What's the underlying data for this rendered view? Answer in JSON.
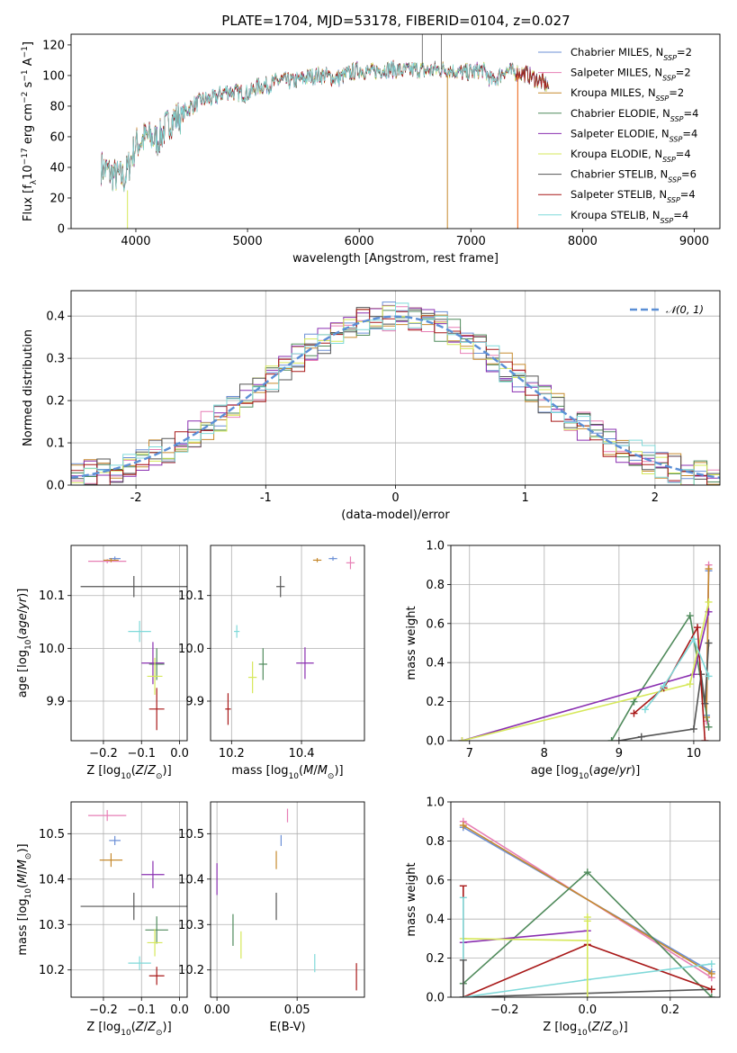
{
  "figure": {
    "title": "PLATE=1704, MJD=53178, FIBERID=0104, z=0.027",
    "colors": {
      "chabrier_miles": "#6b8fd6",
      "salpeter_miles": "#e77fb5",
      "kroupa_miles": "#c68a2e",
      "chabrier_elodie": "#4f8a5b",
      "salpeter_elodie": "#8a2fb0",
      "kroupa_elodie": "#d6e85a",
      "chabrier_stelib": "#555555",
      "salpeter_stelib": "#a81818",
      "kroupa_stelib": "#7fd9d9",
      "normal_curve": "#5b8fd6",
      "spec_orange": "#ee7733"
    }
  },
  "chart_data": [
    {
      "type": "line",
      "title": "PLATE=1704, MJD=53178, FIBERID=0104, z=0.027",
      "xlabel": "wavelength [Angstrom, rest frame]",
      "ylabel_html": "Flux [f<tspan baseline-shift=\"sub\" font-size=\"9\">λ</tspan>10<tspan baseline-shift=\"super\" font-size=\"9\">−17</tspan> erg cm<tspan baseline-shift=\"super\" font-size=\"9\">−2</tspan> s<tspan baseline-shift=\"super\" font-size=\"9\">−1</tspan> A<tspan baseline-shift=\"super\" font-size=\"9\">−1</tspan>]",
      "xlim": [
        3420,
        9230
      ],
      "ylim": [
        0,
        127
      ],
      "xticks": [
        4000,
        5000,
        6000,
        7000,
        8000,
        9000
      ],
      "yticks": [
        0,
        20,
        40,
        60,
        80,
        100,
        120
      ],
      "spectrum_x": [
        3700,
        3800,
        3900,
        4000,
        4100,
        4200,
        4300,
        4400,
        4500,
        4600,
        4700,
        4800,
        4900,
        5000,
        5100,
        5200,
        5300,
        5400,
        5500,
        5600,
        5700,
        5800,
        5900,
        6000,
        6100,
        6200,
        6300,
        6400,
        6500,
        6600,
        6700,
        6800,
        6900,
        7000,
        7100,
        7200,
        7300,
        7400,
        7500,
        7600,
        7700
      ],
      "spectrum_y": [
        40,
        35,
        33,
        55,
        60,
        58,
        70,
        74,
        80,
        84,
        85,
        90,
        89,
        88,
        93,
        94,
        97,
        96,
        98,
        100,
        100,
        98,
        101,
        104,
        102,
        104,
        104,
        103,
        104,
        103,
        104,
        104,
        102,
        102,
        104,
        96,
        103,
        102,
        101,
        97,
        93
      ],
      "legend": [
        {
          "label": "Chabrier MILES, N<tspan baseline-shift=\"sub\" font-size=\"8\" font-style=\"italic\">SSP</tspan>=2",
          "color": "chabrier_miles"
        },
        {
          "label": "Salpeter MILES, N<tspan baseline-shift=\"sub\" font-size=\"8\" font-style=\"italic\">SSP</tspan>=2",
          "color": "salpeter_miles"
        },
        {
          "label": "Kroupa MILES, N<tspan baseline-shift=\"sub\" font-size=\"8\" font-style=\"italic\">SSP</tspan>=2",
          "color": "kroupa_miles"
        },
        {
          "label": "Chabrier ELODIE, N<tspan baseline-shift=\"sub\" font-size=\"8\" font-style=\"italic\">SSP</tspan>=4",
          "color": "chabrier_elodie"
        },
        {
          "label": "Salpeter ELODIE, N<tspan baseline-shift=\"sub\" font-size=\"8\" font-style=\"italic\">SSP</tspan>=4",
          "color": "salpeter_elodie"
        },
        {
          "label": "Kroupa ELODIE, N<tspan baseline-shift=\"sub\" font-size=\"8\" font-style=\"italic\">SSP</tspan>=4",
          "color": "kroupa_elodie"
        },
        {
          "label": "Chabrier STELIB, N<tspan baseline-shift=\"sub\" font-size=\"8\" font-style=\"italic\">SSP</tspan>=6",
          "color": "chabrier_stelib"
        },
        {
          "label": "Salpeter STELIB, N<tspan baseline-shift=\"sub\" font-size=\"8\" font-style=\"italic\">SSP</tspan>=4",
          "color": "salpeter_stelib"
        },
        {
          "label": "Kroupa STELIB, N<tspan baseline-shift=\"sub\" font-size=\"8\" font-style=\"italic\">SSP</tspan>=4",
          "color": "kroupa_stelib"
        }
      ]
    },
    {
      "type": "histogram",
      "xlabel": "(data-model)/error",
      "ylabel": "Normed distribution",
      "xlim": [
        -2.5,
        2.5
      ],
      "ylim": [
        0,
        0.46
      ],
      "xticks": [
        -2,
        -1,
        0,
        1,
        2
      ],
      "yticks": [
        0.0,
        0.1,
        0.2,
        0.3,
        0.4
      ],
      "bin_width": 0.1,
      "curve_label": "𝒩(0, 1)",
      "curve": {
        "mean": 0,
        "sigma": 1
      }
    },
    {
      "type": "scatter",
      "subtype": "errorbar",
      "xlabel_html": "Z [log<tspan baseline-shift=\"sub\" font-size=\"9\">10</tspan>(<tspan font-style=\"italic\">Z</tspan>/<tspan font-style=\"italic\">Z</tspan><tspan baseline-shift=\"sub\" font-size=\"9\">⊙</tspan>)]",
      "ylabel_html": "age  [log<tspan baseline-shift=\"sub\" font-size=\"9\">10</tspan>(<tspan font-style=\"italic\">age</tspan>/<tspan font-style=\"italic\">yr</tspan>)]",
      "xlim": [
        -0.285,
        0.02
      ],
      "ylim": [
        9.825,
        10.195
      ],
      "xticks": [
        -0.2,
        -0.1,
        0.0
      ],
      "xticklabels": [
        "−0.2",
        "−0.1",
        "0.0"
      ],
      "yticks": [
        9.9,
        10.0,
        10.1
      ],
      "points": [
        {
          "c": "chabrier_miles",
          "x": -0.17,
          "xe": 0.015,
          "y": 10.17,
          "ye": 0.004
        },
        {
          "c": "salpeter_miles",
          "x": -0.19,
          "xe": 0.05,
          "y": 10.165,
          "ye": 0.004
        },
        {
          "c": "kroupa_miles",
          "x": -0.18,
          "xe": 0.02,
          "y": 10.167,
          "ye": 0.004
        },
        {
          "c": "chabrier_elodie",
          "x": -0.06,
          "xe": 0.02,
          "y": 9.97,
          "ye": 0.03
        },
        {
          "c": "salpeter_elodie",
          "x": -0.07,
          "xe": 0.03,
          "y": 9.972,
          "ye": 0.04
        },
        {
          "c": "kroupa_elodie",
          "x": -0.065,
          "xe": 0.02,
          "y": 9.947,
          "ye": 0.035
        },
        {
          "c": "chabrier_stelib",
          "x": -0.12,
          "xe": 0.14,
          "y": 10.117,
          "ye": 0.02
        },
        {
          "c": "salpeter_stelib",
          "x": -0.06,
          "xe": 0.02,
          "y": 9.885,
          "ye": 0.04
        },
        {
          "c": "kroupa_stelib",
          "x": -0.105,
          "xe": 0.03,
          "y": 10.032,
          "ye": 0.02
        }
      ]
    },
    {
      "type": "scatter",
      "subtype": "errorbar",
      "xlabel_html": "mass [log<tspan baseline-shift=\"sub\" font-size=\"9\">10</tspan>(<tspan font-style=\"italic\">M</tspan>/<tspan font-style=\"italic\">M</tspan><tspan baseline-shift=\"sub\" font-size=\"9\">⊙</tspan>)]",
      "xlim": [
        10.14,
        10.58
      ],
      "ylim": [
        9.825,
        10.195
      ],
      "xticks": [
        10.2,
        10.4
      ],
      "xticklabels": [
        "10.2",
        "10.4"
      ],
      "yticks": [
        9.9,
        10.0,
        10.1
      ],
      "points": [
        {
          "c": "chabrier_miles",
          "x": 10.49,
          "xe": 0.012,
          "y": 10.17,
          "ye": 0.004
        },
        {
          "c": "salpeter_miles",
          "x": 10.54,
          "xe": 0.012,
          "y": 10.162,
          "ye": 0.012
        },
        {
          "c": "kroupa_miles",
          "x": 10.445,
          "xe": 0.012,
          "y": 10.167,
          "ye": 0.004
        },
        {
          "c": "chabrier_elodie",
          "x": 10.29,
          "xe": 0.012,
          "y": 9.97,
          "ye": 0.03
        },
        {
          "c": "salpeter_elodie",
          "x": 10.41,
          "xe": 0.025,
          "y": 9.972,
          "ye": 0.03
        },
        {
          "c": "kroupa_elodie",
          "x": 10.26,
          "xe": 0.012,
          "y": 9.945,
          "ye": 0.03
        },
        {
          "c": "chabrier_stelib",
          "x": 10.34,
          "xe": 0.012,
          "y": 10.117,
          "ye": 0.02
        },
        {
          "c": "salpeter_stelib",
          "x": 10.19,
          "xe": 0.008,
          "y": 9.885,
          "ye": 0.03
        },
        {
          "c": "kroupa_stelib",
          "x": 10.215,
          "xe": 0.008,
          "y": 10.032,
          "ye": 0.012
        }
      ]
    },
    {
      "type": "line",
      "xlabel_html": "age  [log<tspan baseline-shift=\"sub\" font-size=\"9\">10</tspan>(<tspan font-style=\"italic\">age</tspan>/<tspan font-style=\"italic\">yr</tspan>)]",
      "ylabel": "mass weight",
      "xlim": [
        6.75,
        10.35
      ],
      "ylim": [
        0,
        1.0
      ],
      "xticks": [
        7,
        8,
        9,
        10
      ],
      "xticklabels": [
        "7",
        "8",
        "9",
        "10"
      ],
      "yticks": [
        0.0,
        0.2,
        0.4,
        0.6,
        0.8,
        1.0
      ],
      "yticklabels": [
        "0.0",
        "0.2",
        "0.4",
        "0.6",
        "0.8",
        "1.0"
      ],
      "series": [
        {
          "c": "chabrier_miles",
          "pts": [
            [
              10.17,
              0.13
            ],
            [
              10.2,
              0.87
            ]
          ]
        },
        {
          "c": "salpeter_miles",
          "pts": [
            [
              10.17,
              0.1
            ],
            [
              10.2,
              0.9
            ]
          ]
        },
        {
          "c": "kroupa_miles",
          "pts": [
            [
              10.17,
              0.12
            ],
            [
              10.2,
              0.88
            ]
          ]
        },
        {
          "c": "chabrier_elodie",
          "pts": [
            [
              8.9,
              0.0
            ],
            [
              9.2,
              0.2
            ],
            [
              9.95,
              0.64
            ],
            [
              10.2,
              0.07
            ]
          ]
        },
        {
          "c": "salpeter_elodie",
          "pts": [
            [
              6.9,
              0.0
            ],
            [
              10.0,
              0.34
            ],
            [
              10.2,
              0.66
            ]
          ]
        },
        {
          "c": "kroupa_elodie",
          "pts": [
            [
              6.9,
              0.0
            ],
            [
              9.95,
              0.29
            ],
            [
              10.2,
              0.71
            ]
          ]
        },
        {
          "c": "chabrier_stelib",
          "pts": [
            [
              9.0,
              0.0
            ],
            [
              9.3,
              0.02
            ],
            [
              10.0,
              0.06
            ],
            [
              10.1,
              0.34
            ],
            [
              10.15,
              0.19
            ],
            [
              10.2,
              0.5
            ]
          ]
        },
        {
          "c": "salpeter_stelib",
          "pts": [
            [
              9.2,
              0.14
            ],
            [
              9.6,
              0.27
            ],
            [
              10.05,
              0.58
            ],
            [
              10.15,
              0.0
            ]
          ]
        },
        {
          "c": "kroupa_stelib",
          "pts": [
            [
              9.35,
              0.16
            ],
            [
              9.6,
              0.28
            ],
            [
              10.0,
              0.52
            ],
            [
              10.2,
              0.33
            ]
          ]
        }
      ]
    },
    {
      "type": "scatter",
      "subtype": "errorbar",
      "xlabel_html": "Z [log<tspan baseline-shift=\"sub\" font-size=\"9\">10</tspan>(<tspan font-style=\"italic\">Z</tspan>/<tspan font-style=\"italic\">Z</tspan><tspan baseline-shift=\"sub\" font-size=\"9\">⊙</tspan>)]",
      "ylabel_html": "mass [log<tspan baseline-shift=\"sub\" font-size=\"9\">10</tspan>(<tspan font-style=\"italic\">M</tspan>/<tspan font-style=\"italic\">M</tspan><tspan baseline-shift=\"sub\" font-size=\"9\">⊙</tspan>)]",
      "xlim": [
        -0.285,
        0.02
      ],
      "ylim": [
        10.14,
        10.57
      ],
      "xticks": [
        -0.2,
        -0.1,
        0.0
      ],
      "xticklabels": [
        "−0.2",
        "−0.1",
        "0.0"
      ],
      "yticks": [
        10.2,
        10.3,
        10.4,
        10.5
      ],
      "points": [
        {
          "c": "chabrier_miles",
          "x": -0.17,
          "xe": 0.015,
          "y": 10.485,
          "ye": 0.01
        },
        {
          "c": "salpeter_miles",
          "x": -0.19,
          "xe": 0.05,
          "y": 10.54,
          "ye": 0.012
        },
        {
          "c": "kroupa_miles",
          "x": -0.18,
          "xe": 0.03,
          "y": 10.442,
          "ye": 0.015
        },
        {
          "c": "chabrier_elodie",
          "x": -0.06,
          "xe": 0.03,
          "y": 10.288,
          "ye": 0.03
        },
        {
          "c": "salpeter_elodie",
          "x": -0.07,
          "xe": 0.03,
          "y": 10.41,
          "ye": 0.03
        },
        {
          "c": "kroupa_elodie",
          "x": -0.065,
          "xe": 0.02,
          "y": 10.26,
          "ye": 0.03
        },
        {
          "c": "chabrier_stelib",
          "x": -0.12,
          "xe": 0.14,
          "y": 10.34,
          "ye": 0.03
        },
        {
          "c": "salpeter_stelib",
          "x": -0.06,
          "xe": 0.02,
          "y": 10.187,
          "ye": 0.02
        },
        {
          "c": "kroupa_stelib",
          "x": -0.105,
          "xe": 0.03,
          "y": 10.215,
          "ye": 0.015
        }
      ]
    },
    {
      "type": "scatter",
      "subtype": "errorbar",
      "xlabel": "E(B-V)",
      "xlim": [
        -0.004,
        0.092
      ],
      "ylim": [
        10.14,
        10.57
      ],
      "xticks": [
        0.0,
        0.05
      ],
      "xticklabels": [
        "0.00",
        "0.05"
      ],
      "yticks": [
        10.2,
        10.3,
        10.4,
        10.5
      ],
      "points": [
        {
          "c": "chabrier_miles",
          "x": 0.04,
          "xe": 0,
          "y": 10.485,
          "ye": 0.012
        },
        {
          "c": "salpeter_miles",
          "x": 0.044,
          "xe": 0,
          "y": 10.54,
          "ye": 0.015
        },
        {
          "c": "kroupa_miles",
          "x": 0.037,
          "xe": 0,
          "y": 10.442,
          "ye": 0.02
        },
        {
          "c": "chabrier_elodie",
          "x": 0.01,
          "xe": 0,
          "y": 10.288,
          "ye": 0.035
        },
        {
          "c": "salpeter_elodie",
          "x": 0.0,
          "xe": 0,
          "y": 10.4,
          "ye": 0.035
        },
        {
          "c": "kroupa_elodie",
          "x": 0.015,
          "xe": 0,
          "y": 10.255,
          "ye": 0.03
        },
        {
          "c": "chabrier_stelib",
          "x": 0.037,
          "xe": 0,
          "y": 10.34,
          "ye": 0.03
        },
        {
          "c": "salpeter_stelib",
          "x": 0.087,
          "xe": 0,
          "y": 10.185,
          "ye": 0.03
        },
        {
          "c": "kroupa_stelib",
          "x": 0.061,
          "xe": 0,
          "y": 10.215,
          "ye": 0.02
        }
      ]
    },
    {
      "type": "line",
      "xlabel_html": "Z [log<tspan baseline-shift=\"sub\" font-size=\"9\">10</tspan>(<tspan font-style=\"italic\">Z</tspan>/<tspan font-style=\"italic\">Z</tspan><tspan baseline-shift=\"sub\" font-size=\"9\">⊙</tspan>)]",
      "ylabel": "mass weight",
      "xlim": [
        -0.33,
        0.32
      ],
      "ylim": [
        0,
        1.0
      ],
      "xticks": [
        -0.2,
        0.0,
        0.2
      ],
      "xticklabels": [
        "−0.2",
        "0.0",
        "0.2"
      ],
      "yticks": [
        0.0,
        0.2,
        0.4,
        0.6,
        0.8,
        1.0
      ],
      "yticklabels": [
        "0.0",
        "0.2",
        "0.4",
        "0.6",
        "0.8",
        "1.0"
      ],
      "series": [
        {
          "c": "chabrier_miles",
          "pts": [
            [
              -0.3,
              0.87
            ],
            [
              0.3,
              0.13
            ]
          ]
        },
        {
          "c": "salpeter_miles",
          "pts": [
            [
              -0.3,
              0.9
            ],
            [
              0.3,
              0.1
            ]
          ]
        },
        {
          "c": "kroupa_miles",
          "pts": [
            [
              -0.3,
              0.88
            ],
            [
              0.3,
              0.12
            ]
          ]
        },
        {
          "c": "chabrier_elodie",
          "pts": [
            [
              -0.3,
              0.07
            ],
            [
              0.0,
              0.64
            ],
            [
              0.3,
              0.0
            ]
          ]
        },
        {
          "c": "salpeter_elodie",
          "pts": [
            [
              -0.3,
              0.28
            ],
            [
              0.0,
              0.34
            ]
          ]
        },
        {
          "c": "kroupa_elodie",
          "pts": [
            [
              -0.3,
              0.3
            ],
            [
              0.0,
              0.29
            ],
            [
              0.0,
              0.41
            ]
          ]
        },
        {
          "c": "chabrier_stelib",
          "pts": [
            [
              -0.3,
              0.0
            ],
            [
              0.3,
              0.04
            ]
          ]
        },
        {
          "c": "salpeter_stelib",
          "pts": [
            [
              -0.3,
              0.0
            ],
            [
              0.0,
              0.27
            ],
            [
              0.3,
              0.04
            ]
          ]
        },
        {
          "c": "kroupa_stelib",
          "pts": [
            [
              -0.3,
              0.0
            ],
            [
              0.0,
              0.09
            ],
            [
              0.3,
              0.17
            ]
          ]
        }
      ],
      "vert_ticks": [
        {
          "c": "salpeter_stelib",
          "x": -0.3,
          "y": 0.57
        },
        {
          "c": "kroupa_stelib",
          "x": -0.3,
          "y": 0.51
        },
        {
          "c": "chabrier_stelib",
          "x": -0.3,
          "y": 0.19
        },
        {
          "c": "kroupa_elodie",
          "x": 0.0,
          "y": 0.39
        }
      ]
    }
  ]
}
